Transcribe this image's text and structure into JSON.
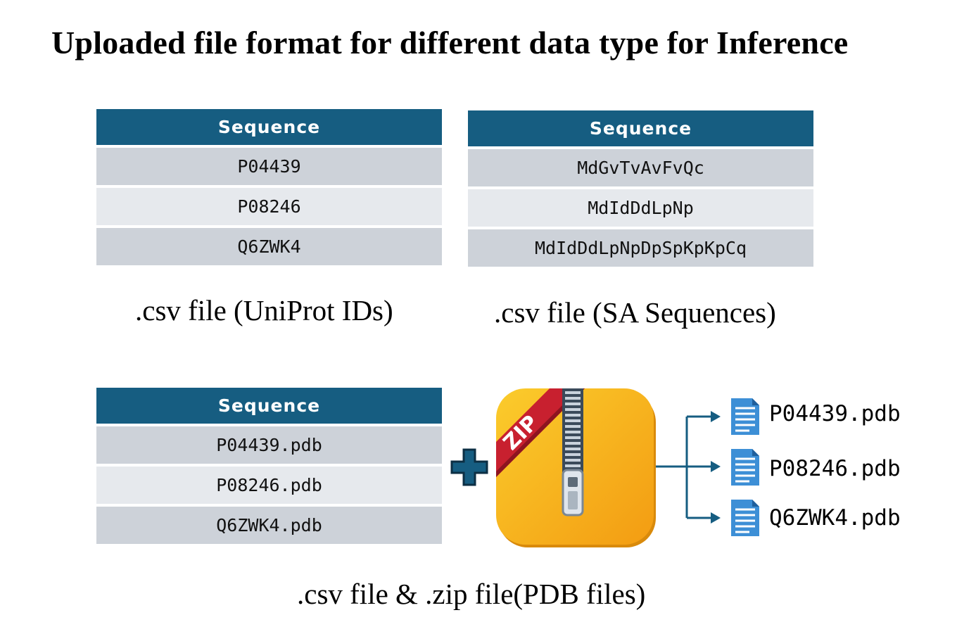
{
  "title": "Uploaded file format for different data type for Inference",
  "tables": [
    {
      "header": "Sequence",
      "rows": [
        "P04439",
        "P08246",
        "Q6ZWK4"
      ],
      "caption": ".csv file (UniProt IDs)"
    },
    {
      "header": "Sequence",
      "rows": [
        "MdGvTvAvFvQc",
        "MdIdDdLpNp",
        "MdIdDdLpNpDpSpKpKpCq"
      ],
      "caption": ".csv file (SA Sequences)"
    },
    {
      "header": "Sequence",
      "rows": [
        "P04439.pdb",
        "P08246.pdb",
        "Q6ZWK4.pdb"
      ]
    }
  ],
  "bottom_caption": ".csv file & .zip file(PDB files)",
  "zip": {
    "label": "ZIP",
    "icon": "zip-archive-icon"
  },
  "zip_contents": [
    "P04439.pdb",
    "P08246.pdb",
    "Q6ZWK4.pdb"
  ],
  "colors": {
    "header_bg": "#165d81",
    "row_dark": "#cdd2d9",
    "row_light": "#e6e9ed",
    "arrow": "#165d81",
    "zip_yellow": "#f7b21b",
    "ribbon_red": "#c8202f",
    "doc_blue": "#3d8fd6"
  }
}
